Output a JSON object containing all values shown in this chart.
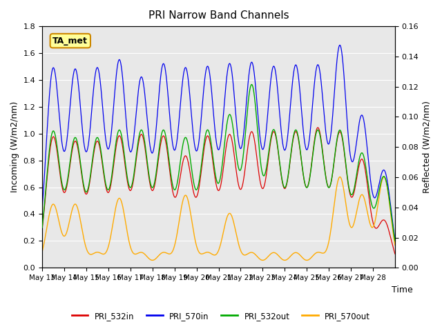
{
  "title": "PRI Narrow Band Channels",
  "xlabel": "Time",
  "ylabel_left": "Incoming (W/m2/nm)",
  "ylabel_right": "Reflected (W/m2/nm)",
  "ylim_left": [
    0.0,
    1.8
  ],
  "ylim_right": [
    0.0,
    0.16
  ],
  "yticks_left": [
    0.0,
    0.2,
    0.4,
    0.6,
    0.8,
    1.0,
    1.2,
    1.4,
    1.6,
    1.8
  ],
  "yticks_right": [
    0.0,
    0.02,
    0.04,
    0.06,
    0.08,
    0.1,
    0.12,
    0.14,
    0.16
  ],
  "xtick_labels": [
    "May 13",
    "May 14",
    "May 15",
    "May 16",
    "May 17",
    "May 18",
    "May 19",
    "May 20",
    "May 21",
    "May 22",
    "May 23",
    "May 24",
    "May 25",
    "May 26",
    "May 27",
    "May 28"
  ],
  "annotation_text": "TA_met",
  "annotation_bg": "#FFFF99",
  "annotation_border": "#CC8800",
  "color_532in": "#DD0000",
  "color_570in": "#0000EE",
  "color_532out": "#00AA00",
  "color_570out": "#FFAA00",
  "legend_labels": [
    "PRI_532in",
    "PRI_570in",
    "PRI_532out",
    "PRI_570out"
  ],
  "bg_color": "#E8E8E8",
  "grid_color": "#FFFFFF",
  "n_days": 16,
  "peak_in_532": [
    0.97,
    0.93,
    0.93,
    0.97,
    0.98,
    0.97,
    0.82,
    0.97,
    0.98,
    1.0,
    1.0,
    1.0,
    1.03,
    1.0,
    0.8,
    0.35
  ],
  "peak_in_570": [
    1.48,
    1.46,
    1.47,
    1.53,
    1.4,
    1.5,
    1.47,
    1.48,
    1.5,
    1.51,
    1.48,
    1.49,
    1.49,
    1.64,
    1.12,
    0.72
  ],
  "peak_out_532": [
    0.09,
    0.085,
    0.085,
    0.09,
    0.09,
    0.09,
    0.085,
    0.09,
    0.1,
    0.12,
    0.09,
    0.09,
    0.09,
    0.09,
    0.075,
    0.06
  ],
  "peak_out_570": [
    0.042,
    0.042,
    0.01,
    0.046,
    0.01,
    0.01,
    0.048,
    0.01,
    0.036,
    0.01,
    0.01,
    0.01,
    0.01,
    0.06,
    0.048,
    0.06
  ]
}
